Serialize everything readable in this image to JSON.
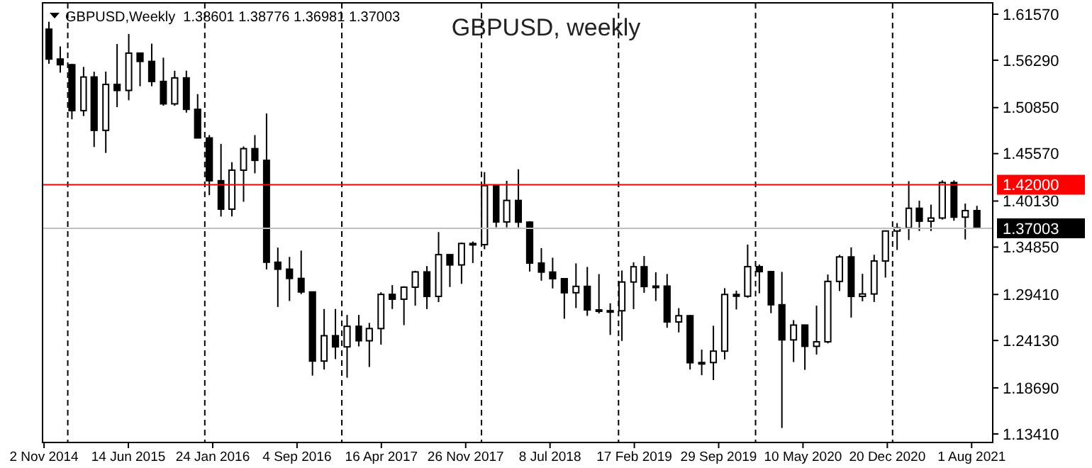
{
  "chart_data": {
    "type": "candlestick",
    "title": "GBPUSD, weekly",
    "annotations": [
      "GBPUSD,Weekly  1.38601 1.38776 1.36981 1.37003"
    ],
    "x": [
      "2014-11-15",
      "2014-12-15",
      "2015-01-15",
      "2015-02-15",
      "2015-03-15",
      "2015-04-15",
      "2015-05-15",
      "2015-06-15",
      "2015-07-15",
      "2015-08-15",
      "2015-09-15",
      "2015-10-15",
      "2015-11-15",
      "2015-12-15",
      "2016-01-15",
      "2016-02-15",
      "2016-03-15",
      "2016-04-15",
      "2016-05-15",
      "2016-06-15",
      "2016-07-15",
      "2016-08-15",
      "2016-09-15",
      "2016-10-15",
      "2016-11-15",
      "2016-12-15",
      "2017-01-15",
      "2017-02-15",
      "2017-03-15",
      "2017-04-15",
      "2017-05-15",
      "2017-06-15",
      "2017-07-15",
      "2017-08-15",
      "2017-09-15",
      "2017-10-15",
      "2017-11-15",
      "2017-12-15",
      "2018-01-15",
      "2018-02-15",
      "2018-03-15",
      "2018-04-15",
      "2018-05-15",
      "2018-06-15",
      "2018-07-15",
      "2018-08-15",
      "2018-09-15",
      "2018-10-15",
      "2018-11-15",
      "2018-12-15",
      "2019-01-15",
      "2019-02-15",
      "2019-03-15",
      "2019-04-15",
      "2019-05-15",
      "2019-06-15",
      "2019-07-15",
      "2019-08-15",
      "2019-09-15",
      "2019-10-15",
      "2019-11-15",
      "2019-12-15",
      "2020-01-15",
      "2020-02-15",
      "2020-03-15",
      "2020-04-15",
      "2020-05-15",
      "2020-06-15",
      "2020-07-15",
      "2020-08-15",
      "2020-09-15",
      "2020-10-15",
      "2020-11-15",
      "2020-12-15",
      "2021-01-15",
      "2021-02-15",
      "2021-03-15",
      "2021-04-15",
      "2021-05-15",
      "2021-06-15",
      "2021-07-15",
      "2021-08-15"
    ],
    "ohlc": [
      [
        1.5985,
        1.607,
        1.5588,
        1.5642
      ],
      [
        1.5642,
        1.5787,
        1.5486,
        1.5577
      ],
      [
        1.5577,
        1.5588,
        1.4951,
        1.505
      ],
      [
        1.505,
        1.5552,
        1.4988,
        1.5436
      ],
      [
        1.5436,
        1.5497,
        1.4633,
        1.4824
      ],
      [
        1.4824,
        1.5498,
        1.4565,
        1.5351
      ],
      [
        1.5351,
        1.5815,
        1.509,
        1.5282
      ],
      [
        1.5282,
        1.593,
        1.5169,
        1.571
      ],
      [
        1.571,
        1.571,
        1.533,
        1.5615
      ],
      [
        1.5615,
        1.5819,
        1.533,
        1.5385
      ],
      [
        1.5385,
        1.5658,
        1.5107,
        1.5128
      ],
      [
        1.5128,
        1.5508,
        1.5106,
        1.5426
      ],
      [
        1.5426,
        1.5509,
        1.5027,
        1.5065
      ],
      [
        1.5065,
        1.524,
        1.4737,
        1.4737
      ],
      [
        1.4737,
        1.477,
        1.408,
        1.4246
      ],
      [
        1.4246,
        1.4668,
        1.3835,
        1.392
      ],
      [
        1.392,
        1.4459,
        1.3836,
        1.4367
      ],
      [
        1.4367,
        1.4639,
        1.4005,
        1.4614
      ],
      [
        1.4614,
        1.477,
        1.4331,
        1.448
      ],
      [
        1.448,
        1.5018,
        1.3229,
        1.3311
      ],
      [
        1.3311,
        1.3479,
        1.2798,
        1.3231
      ],
      [
        1.3231,
        1.3372,
        1.2866,
        1.3125
      ],
      [
        1.3125,
        1.3445,
        1.2945,
        1.297
      ],
      [
        1.297,
        1.297,
        1.201,
        1.2177
      ],
      [
        1.2177,
        1.2775,
        1.208,
        1.2468
      ],
      [
        1.2468,
        1.2775,
        1.22,
        1.234
      ],
      [
        1.234,
        1.2706,
        1.1986,
        1.2576
      ],
      [
        1.2576,
        1.2706,
        1.2345,
        1.241
      ],
      [
        1.241,
        1.2615,
        1.2109,
        1.255
      ],
      [
        1.255,
        1.2966,
        1.2365,
        1.2942
      ],
      [
        1.2942,
        1.3048,
        1.2774,
        1.2887
      ],
      [
        1.2887,
        1.3035,
        1.2589,
        1.3025
      ],
      [
        1.3025,
        1.3213,
        1.2812,
        1.32
      ],
      [
        1.32,
        1.3267,
        1.2774,
        1.2919
      ],
      [
        1.2919,
        1.3657,
        1.2854,
        1.3398
      ],
      [
        1.3398,
        1.3399,
        1.3027,
        1.328
      ],
      [
        1.328,
        1.3537,
        1.3063,
        1.3526
      ],
      [
        1.3526,
        1.3549,
        1.3302,
        1.3513
      ],
      [
        1.3513,
        1.4345,
        1.346,
        1.419
      ],
      [
        1.419,
        1.419,
        1.3712,
        1.3773
      ],
      [
        1.3773,
        1.4245,
        1.3711,
        1.402
      ],
      [
        1.402,
        1.4377,
        1.3711,
        1.3771
      ],
      [
        1.3771,
        1.3782,
        1.3204,
        1.3301
      ],
      [
        1.3301,
        1.3473,
        1.3099,
        1.3198
      ],
      [
        1.3198,
        1.3363,
        1.301,
        1.3122
      ],
      [
        1.3122,
        1.3122,
        1.2662,
        1.2961
      ],
      [
        1.2961,
        1.3298,
        1.2785,
        1.3034
      ],
      [
        1.3034,
        1.3257,
        1.2696,
        1.2764
      ],
      [
        1.2764,
        1.3175,
        1.2723,
        1.2755
      ],
      [
        1.2755,
        1.284,
        1.2477,
        1.2754
      ],
      [
        1.2754,
        1.3216,
        1.2408,
        1.3084
      ],
      [
        1.3084,
        1.331,
        1.2773,
        1.3259
      ],
      [
        1.3259,
        1.3382,
        1.296,
        1.3032
      ],
      [
        1.3032,
        1.3196,
        1.2866,
        1.3037
      ],
      [
        1.3037,
        1.3176,
        1.2559,
        1.2626
      ],
      [
        1.2626,
        1.2784,
        1.2506,
        1.2697
      ],
      [
        1.2697,
        1.2707,
        1.208,
        1.2158
      ],
      [
        1.2158,
        1.2309,
        1.2015,
        1.216
      ],
      [
        1.216,
        1.2582,
        1.1959,
        1.2291
      ],
      [
        1.2291,
        1.3013,
        1.2196,
        1.2941
      ],
      [
        1.2941,
        1.2985,
        1.2769,
        1.2921
      ],
      [
        1.2921,
        1.3514,
        1.2904,
        1.326
      ],
      [
        1.326,
        1.3284,
        1.2954,
        1.3203
      ],
      [
        1.3203,
        1.3212,
        1.2726,
        1.2823
      ],
      [
        1.2823,
        1.32,
        1.1409,
        1.242
      ],
      [
        1.242,
        1.2647,
        1.2166,
        1.259
      ],
      [
        1.259,
        1.259,
        1.2076,
        1.2346
      ],
      [
        1.2346,
        1.2813,
        1.2252,
        1.2398
      ],
      [
        1.2398,
        1.317,
        1.238,
        1.3091
      ],
      [
        1.3091,
        1.3395,
        1.2981,
        1.3372
      ],
      [
        1.3372,
        1.3482,
        1.2676,
        1.2919
      ],
      [
        1.2919,
        1.3178,
        1.2863,
        1.2947
      ],
      [
        1.2947,
        1.3397,
        1.2855,
        1.3325
      ],
      [
        1.3325,
        1.3677,
        1.3135,
        1.3669
      ],
      [
        1.3669,
        1.376,
        1.3452,
        1.3705
      ],
      [
        1.3705,
        1.4241,
        1.3565,
        1.393
      ],
      [
        1.393,
        1.4017,
        1.367,
        1.3782
      ],
      [
        1.3782,
        1.3972,
        1.3669,
        1.3818
      ],
      [
        1.3818,
        1.425,
        1.38,
        1.4225
      ],
      [
        1.4225,
        1.425,
        1.3787,
        1.3828
      ],
      [
        1.3828,
        1.3984,
        1.3572,
        1.3903
      ],
      [
        1.3903,
        1.3958,
        1.3698,
        1.37003
      ]
    ],
    "color": "#000000",
    "xlim": [
      "2014-10-29",
      "2021-09-26"
    ],
    "xticks": [
      {
        "value": "2014-11-02",
        "label": "2 Nov 2014"
      },
      {
        "value": "2015-06-14",
        "label": "14 Jun 2015"
      },
      {
        "value": "2016-01-24",
        "label": "24 Jan 2016"
      },
      {
        "value": "2016-09-04",
        "label": "4 Sep 2016"
      },
      {
        "value": "2017-04-16",
        "label": "16 Apr 2017"
      },
      {
        "value": "2017-11-26",
        "label": "26 Nov 2017"
      },
      {
        "value": "2018-07-08",
        "label": "8 Jul 2018"
      },
      {
        "value": "2019-02-17",
        "label": "17 Feb 2019"
      },
      {
        "value": "2019-09-29",
        "label": "29 Sep 2019"
      },
      {
        "value": "2020-05-10",
        "label": "10 May 2020"
      },
      {
        "value": "2020-12-20",
        "label": "20 Dec 2020"
      },
      {
        "value": "2021-08-01",
        "label": "1 Aug 2021"
      }
    ],
    "ylim": [
      1.1243,
      1.6287
    ],
    "yticks": [
      {
        "value": 1.6157,
        "label": "1.61570"
      },
      {
        "value": 1.5629,
        "label": "1.56290"
      },
      {
        "value": 1.5085,
        "label": "1.50850"
      },
      {
        "value": 1.4557,
        "label": "1.45570"
      },
      {
        "value": 1.4013,
        "label": "1.40130"
      },
      {
        "value": 1.3485,
        "label": "1.34850"
      },
      {
        "value": 1.2941,
        "label": "1.29410"
      },
      {
        "value": 1.2413,
        "label": "1.24130"
      },
      {
        "value": 1.1869,
        "label": "1.18690"
      },
      {
        "value": 1.1341,
        "label": "1.13410"
      }
    ],
    "ref_lines": [
      {
        "axis": "y",
        "value": 1.42,
        "label": "1.42000",
        "color": "#ff0000",
        "line_style": "solid"
      },
      {
        "axis": "y",
        "value": 1.37003,
        "label": "1.37003",
        "color": "#c0c0c0",
        "line_style": "solid"
      },
      {
        "axis": "x",
        "value": "2015-01-04",
        "color": "#000000",
        "line_style": "dashed"
      },
      {
        "axis": "x",
        "value": "2016-01-03",
        "color": "#000000",
        "line_style": "dashed"
      },
      {
        "axis": "x",
        "value": "2017-01-01",
        "color": "#000000",
        "line_style": "dashed"
      },
      {
        "axis": "x",
        "value": "2018-01-07",
        "color": "#000000",
        "line_style": "dashed"
      },
      {
        "axis": "x",
        "value": "2019-01-06",
        "color": "#000000",
        "line_style": "dashed"
      },
      {
        "axis": "x",
        "value": "2020-01-05",
        "color": "#000000",
        "line_style": "dashed"
      },
      {
        "axis": "x",
        "value": "2021-01-03",
        "color": "#000000",
        "line_style": "dashed"
      }
    ],
    "grid": false
  }
}
